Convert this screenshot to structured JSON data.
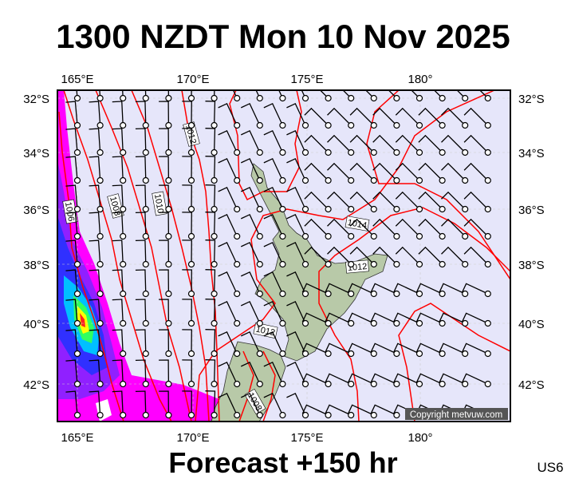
{
  "title": "1300 NZDT Mon 10 Nov 2025",
  "footer": "Forecast +150 hr",
  "model_code": "US6",
  "copyright": "Copyright metvuw.com",
  "axes": {
    "top_lon": [
      "165°E",
      "170°E",
      "175°E",
      "180°"
    ],
    "bottom_lon": [
      "165°E",
      "170°E",
      "175°E",
      "180°"
    ],
    "left_lat": [
      "32°S",
      "34°S",
      "36°S",
      "38°S",
      "40°S",
      "42°S"
    ],
    "right_lat": [
      "32°S",
      "34°S",
      "36°S",
      "38°S",
      "40°S",
      "42°S"
    ]
  },
  "isobar_labels": [
    "1006",
    "1008",
    "1010",
    "1012",
    "1014",
    "1012",
    "1012",
    "1008"
  ],
  "colors": {
    "ocean": "#e6e6fa",
    "isobar": "#ff0000",
    "land": "#b8c9a8",
    "precip_light": "#ff00ff",
    "precip_mid": "#3030ff",
    "precip_heavy": "#ffff00",
    "precip_peak": "#ff2020"
  }
}
